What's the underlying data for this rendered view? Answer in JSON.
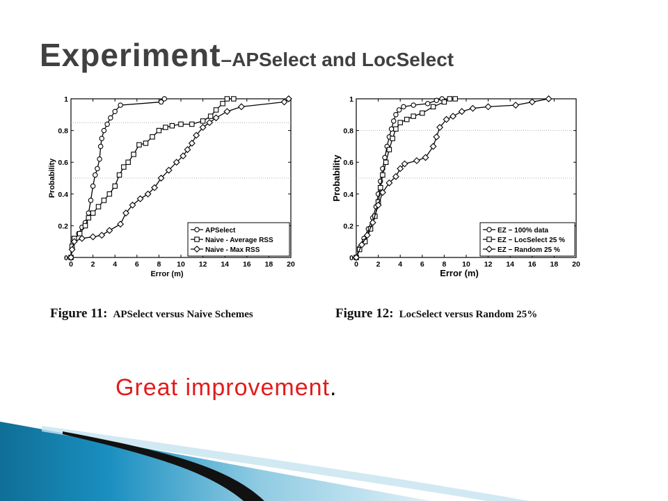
{
  "slide": {
    "title_main": "Experiment",
    "title_sub": "–APSelect and LocSelect",
    "note_text": "Great improvement",
    "note_end": ".",
    "colors": {
      "note": "#e21b1b",
      "title": "#404040",
      "accent": "#1a8fc0"
    }
  },
  "chart_data": [
    {
      "type": "line",
      "caption_label": "Figure 11:",
      "caption_text": "APSelect versus Naive Schemes",
      "xlabel": "Error (m)",
      "ylabel": "Probability",
      "xlim": [
        0,
        20
      ],
      "ylim": [
        0,
        1
      ],
      "xticks": [
        "0",
        "2",
        "4",
        "6",
        "8",
        "10",
        "12",
        "14",
        "16",
        "18",
        "20"
      ],
      "yticks": [
        "0",
        "0.2",
        "0.4",
        "0.6",
        "0.8",
        "1"
      ],
      "grid": "dotted horizontal at 0.5 and 0.85",
      "legend_position": "bottom-right",
      "series": [
        {
          "name": "APSelect",
          "marker": "circle",
          "points": [
            [
              0,
              0
            ],
            [
              0.1,
              0.06
            ],
            [
              0.3,
              0.11
            ],
            [
              0.7,
              0.15
            ],
            [
              1,
              0.19
            ],
            [
              1.3,
              0.22
            ],
            [
              1.6,
              0.28
            ],
            [
              1.8,
              0.36
            ],
            [
              2,
              0.45
            ],
            [
              2.2,
              0.52
            ],
            [
              2.4,
              0.56
            ],
            [
              2.6,
              0.62
            ],
            [
              2.7,
              0.7
            ],
            [
              2.8,
              0.75
            ],
            [
              3,
              0.8
            ],
            [
              3.3,
              0.84
            ],
            [
              3.6,
              0.88
            ],
            [
              4,
              0.92
            ],
            [
              4.5,
              0.96
            ],
            [
              8.2,
              0.98
            ],
            [
              8.5,
              1.0
            ]
          ]
        },
        {
          "name": "Naive - Average RSS",
          "marker": "square",
          "points": [
            [
              0,
              0
            ],
            [
              0.1,
              0.07
            ],
            [
              0.3,
              0.12
            ],
            [
              0.8,
              0.15
            ],
            [
              1.3,
              0.2
            ],
            [
              1.6,
              0.25
            ],
            [
              2,
              0.28
            ],
            [
              2.5,
              0.32
            ],
            [
              3,
              0.36
            ],
            [
              3.5,
              0.4
            ],
            [
              4,
              0.45
            ],
            [
              4.4,
              0.52
            ],
            [
              4.8,
              0.57
            ],
            [
              5.2,
              0.6
            ],
            [
              5.7,
              0.65
            ],
            [
              6.2,
              0.71
            ],
            [
              6.8,
              0.72
            ],
            [
              7.4,
              0.76
            ],
            [
              8,
              0.8
            ],
            [
              8.6,
              0.82
            ],
            [
              9.2,
              0.83
            ],
            [
              10,
              0.84
            ],
            [
              11,
              0.84
            ],
            [
              12,
              0.86
            ],
            [
              12.7,
              0.89
            ],
            [
              13.2,
              0.93
            ],
            [
              13.8,
              0.97
            ],
            [
              14.2,
              1.0
            ],
            [
              14.8,
              1.0
            ]
          ]
        },
        {
          "name": "Naive - Max RSS",
          "marker": "diamond",
          "points": [
            [
              0,
              0
            ],
            [
              0.1,
              0.05
            ],
            [
              0.3,
              0.1
            ],
            [
              1,
              0.12
            ],
            [
              2,
              0.13
            ],
            [
              2.8,
              0.14
            ],
            [
              3.5,
              0.17
            ],
            [
              4.5,
              0.21
            ],
            [
              5,
              0.28
            ],
            [
              5.6,
              0.33
            ],
            [
              6.3,
              0.37
            ],
            [
              7,
              0.4
            ],
            [
              7.6,
              0.44
            ],
            [
              8.2,
              0.5
            ],
            [
              8.9,
              0.55
            ],
            [
              9.6,
              0.6
            ],
            [
              10.2,
              0.64
            ],
            [
              10.6,
              0.68
            ],
            [
              11,
              0.72
            ],
            [
              11.4,
              0.77
            ],
            [
              12,
              0.82
            ],
            [
              12.6,
              0.85
            ],
            [
              13.2,
              0.88
            ],
            [
              14.2,
              0.92
            ],
            [
              15.5,
              0.95
            ],
            [
              19.4,
              0.98
            ],
            [
              19.8,
              1.0
            ]
          ]
        }
      ]
    },
    {
      "type": "line",
      "caption_label": "Figure 12:",
      "caption_text": "LocSelect versus Random 25%",
      "xlabel": "Error (m)",
      "ylabel": "Probability",
      "xlim": [
        0,
        20
      ],
      "ylim": [
        0,
        1
      ],
      "xticks": [
        "0",
        "2",
        "4",
        "6",
        "8",
        "10",
        "12",
        "14",
        "16",
        "18",
        "20"
      ],
      "yticks": [
        "0",
        "0.2",
        "0.4",
        "0.6",
        "0.8",
        "1"
      ],
      "grid": "dotted horizontal at 0.5 and 0.8",
      "legend_position": "bottom-right",
      "series": [
        {
          "name": "EZ − 100% data",
          "marker": "circle",
          "points": [
            [
              0,
              0
            ],
            [
              0.3,
              0.06
            ],
            [
              0.7,
              0.12
            ],
            [
              1.1,
              0.18
            ],
            [
              1.5,
              0.25
            ],
            [
              1.8,
              0.32
            ],
            [
              2,
              0.4
            ],
            [
              2.2,
              0.48
            ],
            [
              2.4,
              0.56
            ],
            [
              2.6,
              0.63
            ],
            [
              2.8,
              0.7
            ],
            [
              3,
              0.76
            ],
            [
              3.2,
              0.81
            ],
            [
              3.4,
              0.86
            ],
            [
              3.6,
              0.9
            ],
            [
              3.9,
              0.93
            ],
            [
              4.3,
              0.95
            ],
            [
              5.2,
              0.96
            ],
            [
              6.5,
              0.97
            ],
            [
              7.3,
              0.99
            ],
            [
              7.8,
              1.0
            ]
          ]
        },
        {
          "name": "EZ − LocSelect 25 %",
          "marker": "square",
          "points": [
            [
              0,
              0
            ],
            [
              0.3,
              0.05
            ],
            [
              0.8,
              0.1
            ],
            [
              1.3,
              0.18
            ],
            [
              1.7,
              0.26
            ],
            [
              2,
              0.35
            ],
            [
              2.2,
              0.44
            ],
            [
              2.4,
              0.52
            ],
            [
              2.7,
              0.6
            ],
            [
              3,
              0.68
            ],
            [
              3.3,
              0.75
            ],
            [
              3.6,
              0.81
            ],
            [
              4,
              0.85
            ],
            [
              4.6,
              0.87
            ],
            [
              5.2,
              0.89
            ],
            [
              6,
              0.91
            ],
            [
              7,
              0.95
            ],
            [
              8,
              0.98
            ],
            [
              8.5,
              1.0
            ],
            [
              9,
              1.0
            ]
          ]
        },
        {
          "name": "EZ − Random 25 %",
          "marker": "diamond",
          "points": [
            [
              0,
              0
            ],
            [
              0.5,
              0.08
            ],
            [
              1,
              0.14
            ],
            [
              1.5,
              0.22
            ],
            [
              2,
              0.33
            ],
            [
              2.4,
              0.41
            ],
            [
              3,
              0.47
            ],
            [
              3.6,
              0.51
            ],
            [
              4,
              0.56
            ],
            [
              4.4,
              0.59
            ],
            [
              5.5,
              0.61
            ],
            [
              6.3,
              0.63
            ],
            [
              7,
              0.7
            ],
            [
              7.3,
              0.76
            ],
            [
              7.6,
              0.82
            ],
            [
              8.2,
              0.87
            ],
            [
              8.8,
              0.89
            ],
            [
              9.6,
              0.92
            ],
            [
              10.6,
              0.94
            ],
            [
              12,
              0.95
            ],
            [
              14.5,
              0.96
            ],
            [
              16,
              0.98
            ],
            [
              17.5,
              1.0
            ]
          ]
        }
      ]
    }
  ]
}
